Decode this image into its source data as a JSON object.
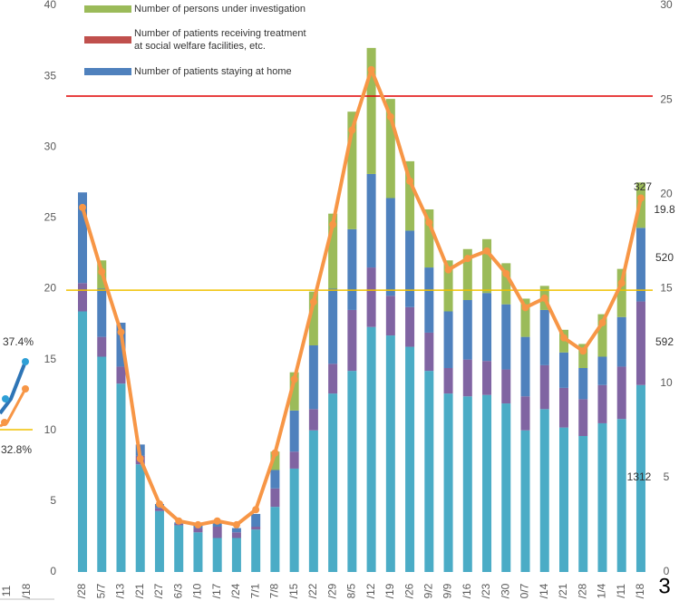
{
  "chart_data": {
    "type": "bar",
    "legend": [
      "Number of persons under investigation",
      "Number of patients receiving treatment at social welfare facilities, etc.",
      "Number of patients staying at home"
    ],
    "categories": [
      "/28",
      "5/7",
      "/13",
      "/21",
      "/27",
      "6/3",
      "/10",
      "/17",
      "/24",
      "7/1",
      "7/8",
      "/15",
      "/22",
      "/29",
      "8/5",
      "/12",
      "/19",
      "/26",
      "9/2",
      "9/9",
      "/16",
      "/23",
      "/30",
      "0/7",
      "/14",
      "/21",
      "/28",
      "1/4",
      "/11",
      "/18"
    ],
    "series": [
      {
        "color": "#4bacc6",
        "values": [
          18.4,
          15.2,
          13.3,
          7.6,
          4.3,
          3.3,
          2.8,
          2.4,
          2.4,
          3.0,
          4.6,
          7.3,
          10.0,
          12.6,
          14.2,
          17.3,
          16.7,
          15.9,
          14.2,
          12.6,
          12.4,
          12.5,
          11.9,
          10.0,
          11.5,
          10.2,
          9.6,
          10.5,
          10.8,
          13.2
        ]
      },
      {
        "color": "#8064a2",
        "values": [
          2.0,
          1.4,
          1.2,
          0.6,
          0.2,
          0.1,
          0.3,
          0.8,
          0.4,
          0.2,
          1.3,
          1.2,
          1.5,
          2.1,
          4.3,
          4.2,
          2.8,
          2.8,
          2.7,
          1.8,
          2.6,
          2.4,
          2.4,
          2.4,
          3.1,
          2.8,
          2.6,
          2.7,
          3.7,
          5.9
        ]
      },
      {
        "name": "Number of patients staying at home",
        "color": "#4f81bd",
        "values": [
          6.4,
          3.4,
          3.1,
          0.8,
          0.3,
          0.1,
          0.2,
          0.3,
          0.3,
          0.9,
          1.3,
          2.9,
          4.5,
          5.3,
          5.7,
          6.6,
          6.9,
          5.4,
          4.6,
          4.0,
          4.2,
          4.8,
          4.6,
          4.2,
          3.9,
          2.5,
          2.2,
          2.0,
          3.5,
          5.2
        ]
      },
      {
        "name": "Number of persons under investigation",
        "color": "#9bbb59",
        "values": [
          0,
          2.0,
          0,
          0,
          0,
          0,
          0,
          0,
          0,
          0,
          1.3,
          2.7,
          3.8,
          5.3,
          8.3,
          8.9,
          7.0,
          4.9,
          4.1,
          3.6,
          3.6,
          3.8,
          2.9,
          2.7,
          1.7,
          1.6,
          1.7,
          3.0,
          3.4,
          3.2
        ]
      },
      {
        "type": "line",
        "axis": "y2",
        "color": "#f79646",
        "values": [
          19.3,
          15.9,
          12.7,
          6.0,
          3.6,
          2.7,
          2.5,
          2.7,
          2.5,
          3.3,
          6.3,
          10.2,
          14.3,
          18.4,
          23.4,
          26.6,
          24.1,
          20.7,
          18.5,
          16.0,
          16.6,
          17.0,
          15.8,
          14.0,
          14.5,
          12.4,
          11.7,
          13.2,
          15.3,
          19.8
        ]
      }
    ],
    "legend_colors": [
      "#9bbb59",
      "#c0504d",
      "#4f81bd"
    ],
    "reference_lines": [
      {
        "value": 33.6,
        "color": "#e00000"
      },
      {
        "value": 19.9,
        "color": "#f0c000"
      }
    ],
    "ylim": [
      0,
      40
    ],
    "yticks": [
      0,
      5,
      10,
      15,
      20,
      25,
      30,
      35,
      40
    ],
    "y2lim": [
      0,
      30
    ],
    "y2ticks": [
      0,
      5,
      10,
      15,
      20,
      25,
      30
    ],
    "annotations": [
      "327",
      "19.8",
      "520",
      "592",
      "1312"
    ],
    "page_number": "3",
    "left_fragment": {
      "labels": [
        "37.4%",
        "32.8%"
      ],
      "x_labels": [
        "11",
        "/18"
      ]
    }
  }
}
